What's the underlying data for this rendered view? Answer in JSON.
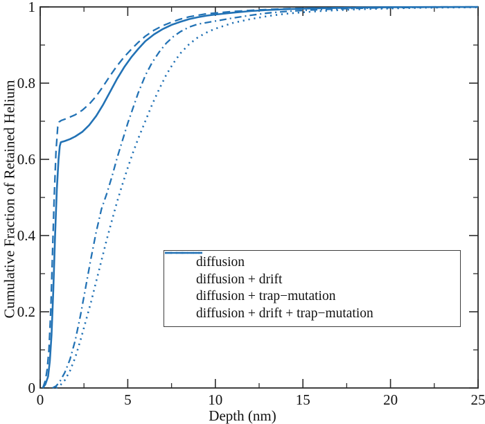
{
  "figure": {
    "background": "#ffffff"
  },
  "chart_data": {
    "type": "line",
    "title": "",
    "xlabel": "Depth (nm)",
    "ylabel": "Cumulative Fraction of Retained Helium",
    "xlim": [
      0,
      25
    ],
    "ylim": [
      0,
      1
    ],
    "grid": false,
    "axis_color": "#2b2b2b",
    "line_color": "#2272b5",
    "x_major_ticks": [
      0,
      5,
      10,
      15,
      20,
      25
    ],
    "x_minor_ticks": [
      2.5,
      7.5,
      12.5,
      17.5,
      22.5
    ],
    "x_tick_labels": [
      "0",
      "5",
      "10",
      "15",
      "20",
      "25"
    ],
    "y_major_ticks": [
      0,
      0.2,
      0.4,
      0.6,
      0.8,
      1
    ],
    "y_minor_ticks": [
      0.1,
      0.3,
      0.5,
      0.7,
      0.9
    ],
    "y_tick_labels": [
      "0",
      "0.2",
      "0.4",
      "0.6",
      "0.8",
      "1"
    ],
    "legend_position": "inside-lower-right",
    "series": [
      {
        "name": "diffusion",
        "line_style": "dash-dot",
        "points": [
          [
            0.7,
            0
          ],
          [
            0.9,
            0.005
          ],
          [
            1.1,
            0.015
          ],
          [
            1.4,
            0.04
          ],
          [
            1.7,
            0.075
          ],
          [
            2.0,
            0.125
          ],
          [
            2.3,
            0.19
          ],
          [
            2.6,
            0.265
          ],
          [
            2.9,
            0.34
          ],
          [
            3.2,
            0.41
          ],
          [
            3.5,
            0.47
          ],
          [
            3.8,
            0.51
          ],
          [
            4.1,
            0.555
          ],
          [
            4.4,
            0.605
          ],
          [
            4.7,
            0.65
          ],
          [
            5.0,
            0.695
          ],
          [
            5.3,
            0.735
          ],
          [
            5.6,
            0.775
          ],
          [
            6.0,
            0.82
          ],
          [
            6.4,
            0.855
          ],
          [
            6.8,
            0.882
          ],
          [
            7.2,
            0.905
          ],
          [
            7.6,
            0.922
          ],
          [
            8.0,
            0.935
          ],
          [
            8.5,
            0.947
          ],
          [
            9.0,
            0.955
          ],
          [
            9.5,
            0.959
          ],
          [
            10,
            0.963
          ],
          [
            11,
            0.971
          ],
          [
            12,
            0.978
          ],
          [
            13,
            0.984
          ],
          [
            14,
            0.988
          ],
          [
            15,
            0.991
          ],
          [
            16,
            0.993
          ],
          [
            17,
            0.995
          ],
          [
            18,
            0.9962
          ],
          [
            19,
            0.9972
          ],
          [
            20,
            0.998
          ],
          [
            22,
            0.999
          ],
          [
            25,
            0.9997
          ]
        ]
      },
      {
        "name": "diffusion + drift",
        "line_style": "dotted",
        "points": [
          [
            0.9,
            0
          ],
          [
            1.1,
            0.005
          ],
          [
            1.4,
            0.02
          ],
          [
            1.7,
            0.045
          ],
          [
            2.0,
            0.08
          ],
          [
            2.3,
            0.125
          ],
          [
            2.6,
            0.175
          ],
          [
            2.9,
            0.225
          ],
          [
            3.2,
            0.28
          ],
          [
            3.5,
            0.335
          ],
          [
            3.8,
            0.39
          ],
          [
            4.1,
            0.44
          ],
          [
            4.4,
            0.49
          ],
          [
            4.7,
            0.535
          ],
          [
            5.0,
            0.578
          ],
          [
            5.3,
            0.618
          ],
          [
            5.6,
            0.655
          ],
          [
            6.0,
            0.7
          ],
          [
            6.4,
            0.745
          ],
          [
            6.8,
            0.785
          ],
          [
            7.2,
            0.822
          ],
          [
            7.6,
            0.852
          ],
          [
            8.0,
            0.878
          ],
          [
            8.5,
            0.902
          ],
          [
            9.0,
            0.92
          ],
          [
            9.5,
            0.933
          ],
          [
            10,
            0.943
          ],
          [
            11,
            0.958
          ],
          [
            12,
            0.968
          ],
          [
            13,
            0.976
          ],
          [
            14,
            0.982
          ],
          [
            15,
            0.986
          ],
          [
            16,
            0.989
          ],
          [
            17,
            0.9915
          ],
          [
            18,
            0.9935
          ],
          [
            19,
            0.995
          ],
          [
            20,
            0.996
          ],
          [
            22,
            0.998
          ],
          [
            25,
            0.999
          ]
        ]
      },
      {
        "name": "diffusion + trap−mutation",
        "line_style": "dashed",
        "points": [
          [
            0.15,
            0
          ],
          [
            0.3,
            0.02
          ],
          [
            0.4,
            0.05
          ],
          [
            0.5,
            0.1
          ],
          [
            0.6,
            0.2
          ],
          [
            0.7,
            0.35
          ],
          [
            0.8,
            0.5
          ],
          [
            0.9,
            0.62
          ],
          [
            1.0,
            0.685
          ],
          [
            1.08,
            0.698
          ],
          [
            1.2,
            0.702
          ],
          [
            1.5,
            0.707
          ],
          [
            2.0,
            0.717
          ],
          [
            2.4,
            0.729
          ],
          [
            2.8,
            0.745
          ],
          [
            3.2,
            0.766
          ],
          [
            3.6,
            0.792
          ],
          [
            4.0,
            0.82
          ],
          [
            4.4,
            0.846
          ],
          [
            4.8,
            0.869
          ],
          [
            5.2,
            0.889
          ],
          [
            5.6,
            0.907
          ],
          [
            6.0,
            0.923
          ],
          [
            6.5,
            0.939
          ],
          [
            7.0,
            0.951
          ],
          [
            7.5,
            0.96
          ],
          [
            8.0,
            0.968
          ],
          [
            8.5,
            0.974
          ],
          [
            9.0,
            0.978
          ],
          [
            9.5,
            0.982
          ],
          [
            10,
            0.984
          ],
          [
            11,
            0.988
          ],
          [
            12,
            0.991
          ],
          [
            13,
            0.9935
          ],
          [
            14,
            0.9952
          ],
          [
            15,
            0.9963
          ],
          [
            16,
            0.9972
          ],
          [
            17,
            0.998
          ],
          [
            18,
            0.9986
          ],
          [
            19,
            0.999
          ],
          [
            20,
            0.9994
          ],
          [
            22,
            0.9998
          ],
          [
            25,
            1.0
          ]
        ]
      },
      {
        "name": "diffusion + drift + trap−mutation",
        "line_style": "solid",
        "points": [
          [
            0.15,
            0
          ],
          [
            0.3,
            0.01
          ],
          [
            0.45,
            0.03
          ],
          [
            0.55,
            0.07
          ],
          [
            0.65,
            0.14
          ],
          [
            0.75,
            0.26
          ],
          [
            0.85,
            0.4
          ],
          [
            0.95,
            0.52
          ],
          [
            1.05,
            0.6
          ],
          [
            1.12,
            0.635
          ],
          [
            1.18,
            0.645
          ],
          [
            1.4,
            0.648
          ],
          [
            1.7,
            0.653
          ],
          [
            2.0,
            0.66
          ],
          [
            2.4,
            0.672
          ],
          [
            2.8,
            0.69
          ],
          [
            3.2,
            0.714
          ],
          [
            3.6,
            0.744
          ],
          [
            4.0,
            0.778
          ],
          [
            4.4,
            0.812
          ],
          [
            4.8,
            0.842
          ],
          [
            5.2,
            0.868
          ],
          [
            5.6,
            0.89
          ],
          [
            6.0,
            0.91
          ],
          [
            6.5,
            0.928
          ],
          [
            7.0,
            0.942
          ],
          [
            7.5,
            0.953
          ],
          [
            8.0,
            0.961
          ],
          [
            8.5,
            0.968
          ],
          [
            9.0,
            0.973
          ],
          [
            9.5,
            0.977
          ],
          [
            10,
            0.98
          ],
          [
            11,
            0.985
          ],
          [
            12,
            0.989
          ],
          [
            13,
            0.992
          ],
          [
            14,
            0.994
          ],
          [
            15,
            0.9955
          ],
          [
            16,
            0.9965
          ],
          [
            17,
            0.9975
          ],
          [
            18,
            0.998
          ],
          [
            19,
            0.9988
          ],
          [
            20,
            0.9992
          ],
          [
            22,
            0.9997
          ],
          [
            25,
            1.0
          ]
        ]
      }
    ]
  }
}
